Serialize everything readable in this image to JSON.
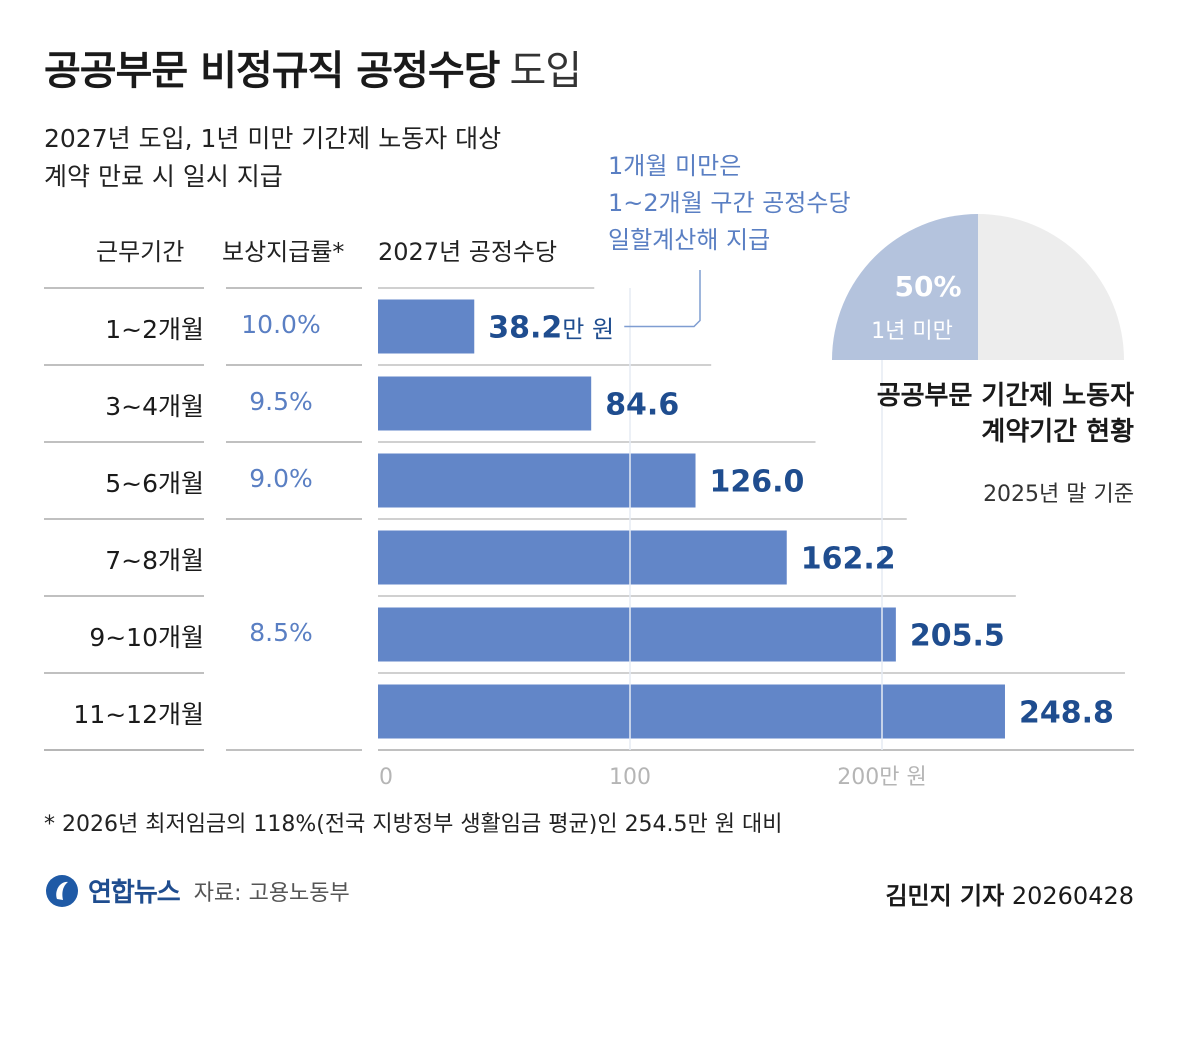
{
  "header": {
    "title_main": "공공부문 비정규직 공정수당",
    "title_suffix": "도입",
    "subtitle_line1": "2027년 도입, 1년 미만 기간제 노동자 대상",
    "subtitle_line2": "계약 만료 시 일시 지급"
  },
  "columns": {
    "period": "근무기간",
    "rate": "보상지급률*",
    "allowance": "2027년 공정수당"
  },
  "annotation": {
    "line1": "1개월 미만은",
    "line2": "1~2개월 구간 공정수당",
    "line3": "일할계산해 지급"
  },
  "chart_data": [
    {
      "type": "bar",
      "orientation": "horizontal",
      "categories": [
        "1~2개월",
        "3~4개월",
        "5~6개월",
        "7~8개월",
        "9~10개월",
        "11~12개월"
      ],
      "values": [
        38.2,
        84.6,
        126.0,
        162.2,
        205.5,
        248.8
      ],
      "value_labels": [
        "38.2",
        "84.6",
        "126.0",
        "162.2",
        "205.5",
        "248.8"
      ],
      "first_value_unit": "만 원",
      "rates": [
        "10.0%",
        "9.5%",
        "9.0%",
        "",
        "8.5%",
        ""
      ],
      "xlim": [
        0,
        300
      ],
      "x_ticks": [
        "0",
        "100",
        "200만 원"
      ],
      "x_tick_values": [
        0,
        100,
        200
      ],
      "grid": true
    },
    {
      "type": "pie",
      "title_line1": "공공부문 기간제 노동자",
      "title_line2": "계약기간 현황",
      "subtitle": "2025년 말 기준",
      "slices": [
        {
          "label": "1년 미만",
          "value": 50,
          "value_label": "50%"
        },
        {
          "label": "",
          "value": 50
        }
      ]
    }
  ],
  "footnote": "* 2026년 최저임금의 118%(전국 지방정부 생활임금 평균)인  254.5만 원 대비",
  "footer": {
    "brand": "연합뉴스",
    "source": "자료: 고용노동부",
    "reporter": "김민지 기자",
    "date": "20260428"
  },
  "colors": {
    "bar": "#6286c8",
    "value_label": "#1f4d8f",
    "rate": "#5a7fc3",
    "pie_highlight": "#b4c3dd",
    "pie_rest": "#ededed"
  }
}
